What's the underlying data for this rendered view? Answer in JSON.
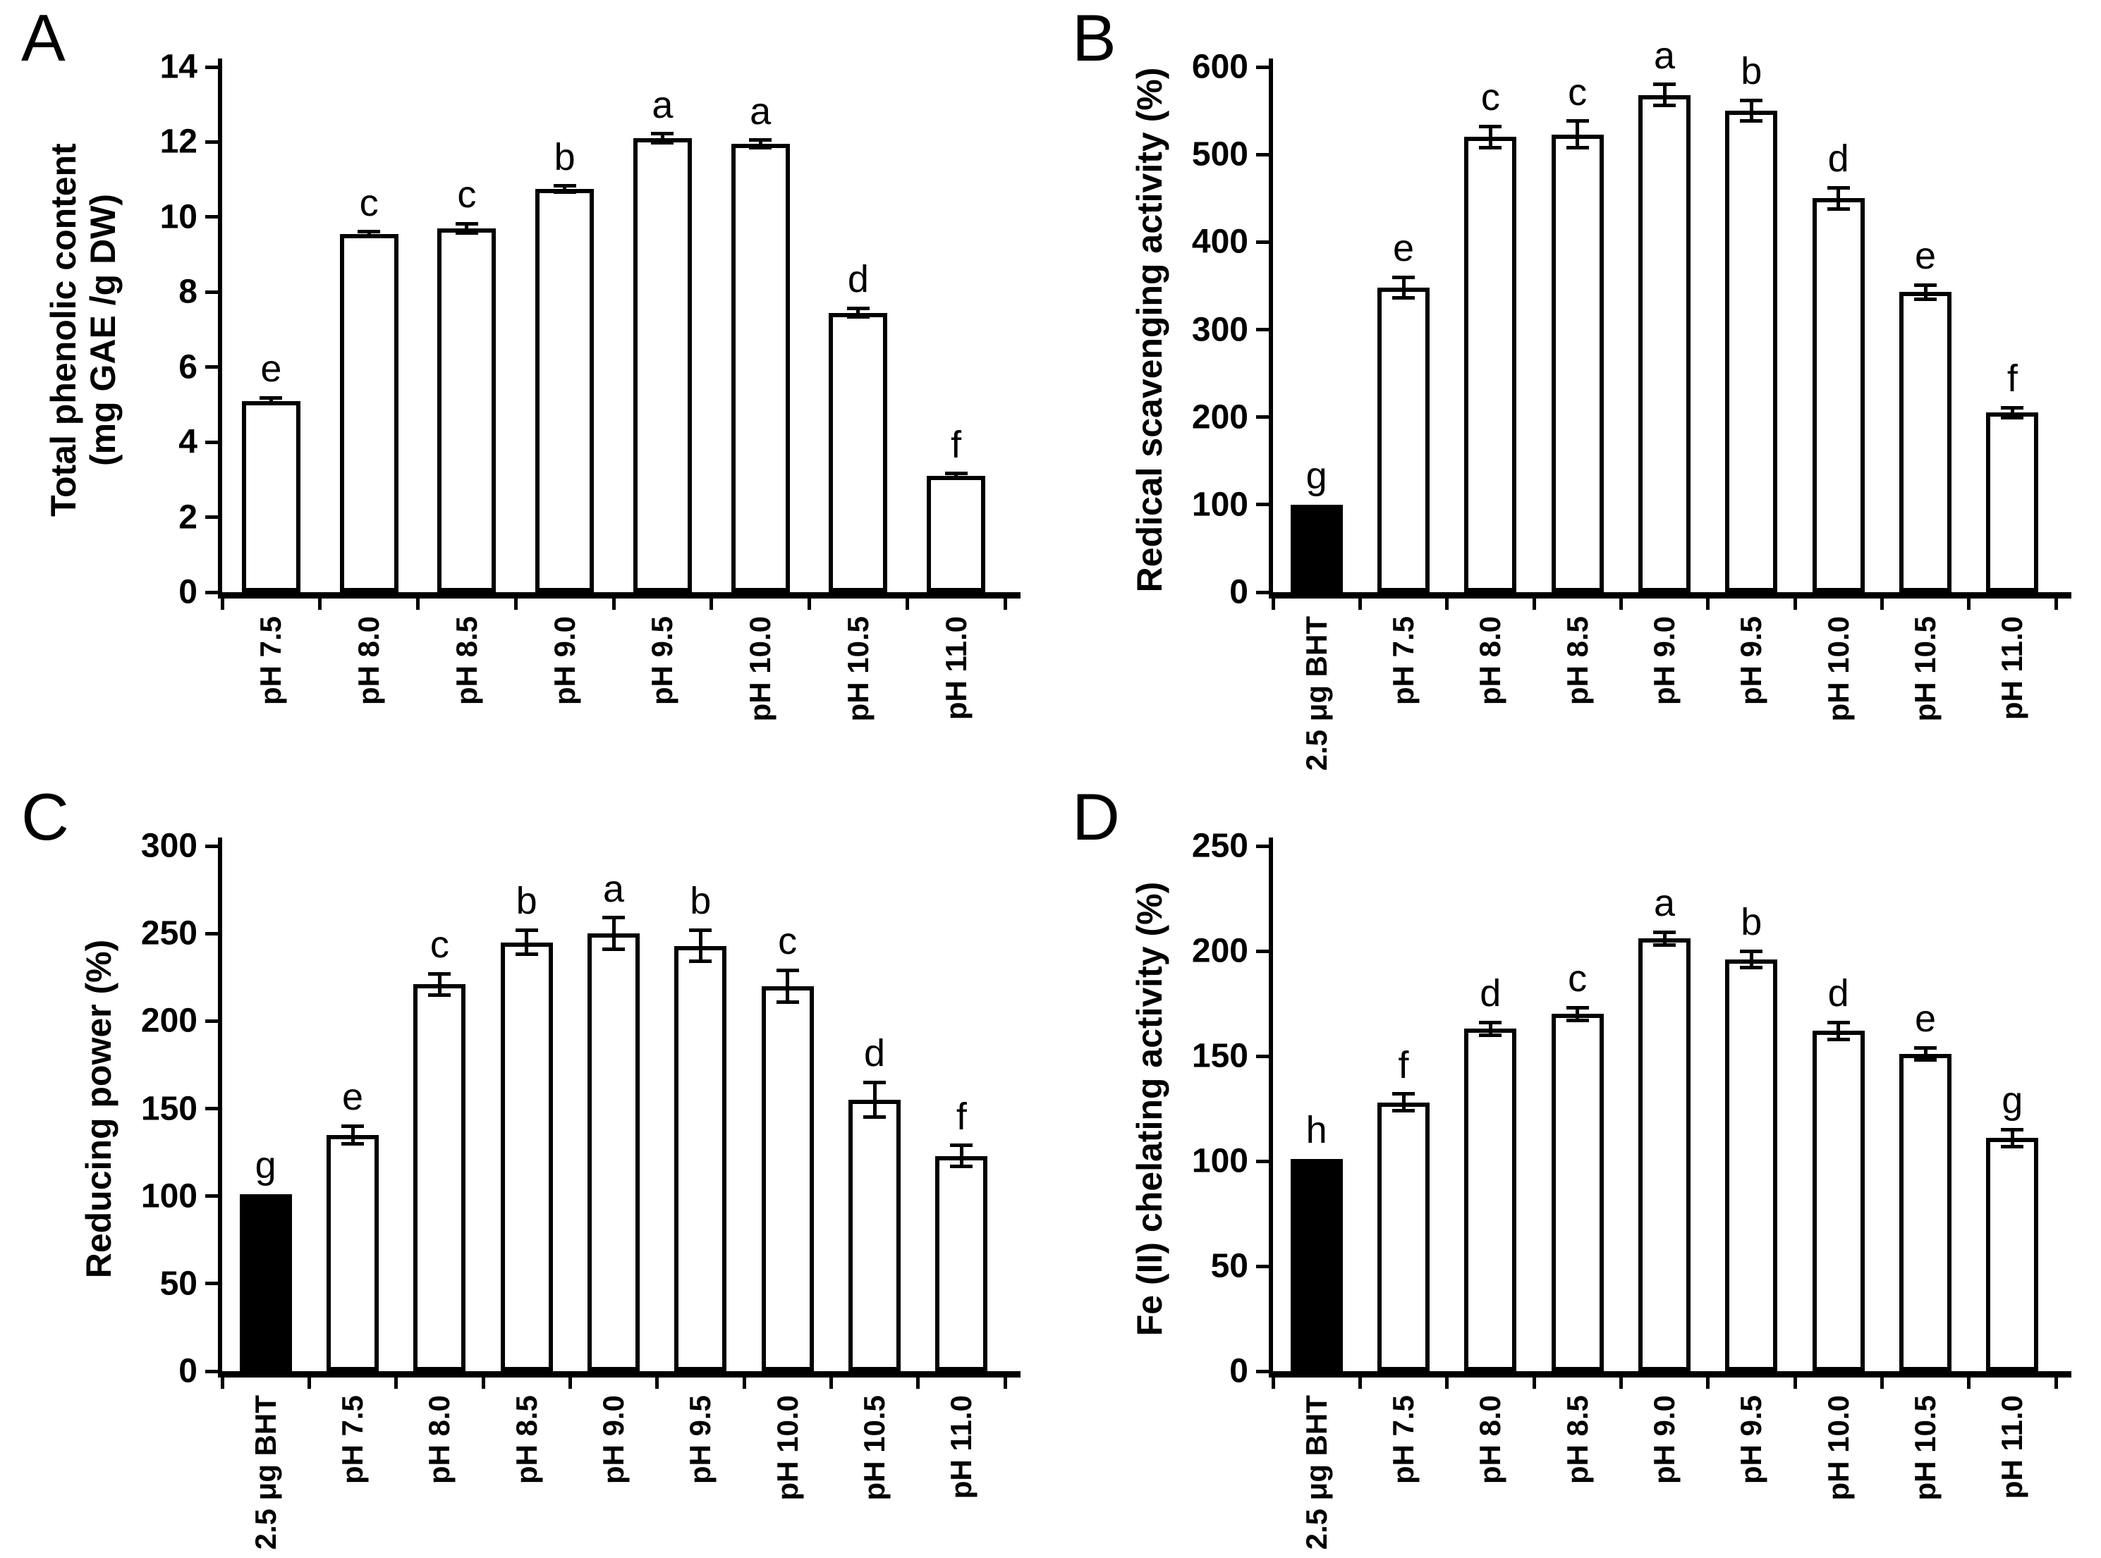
{
  "figure": {
    "background": "#ffffff",
    "axis_color": "#000000",
    "open_bar_fill": "#ffffff",
    "open_bar_outline": "#000000",
    "solid_bar_fill": "#000000",
    "grid": false,
    "legend": "none"
  },
  "chart_data": [
    {
      "panel_label": "A",
      "type": "bar",
      "ylabel_lines": [
        "Total phenolic content",
        "(mg GAE /g DW)"
      ],
      "ylim": [
        0,
        14
      ],
      "yticks": [
        0,
        2,
        4,
        6,
        8,
        10,
        12,
        14
      ],
      "categories": [
        "pH 7.5",
        "pH 8.0",
        "pH 8.5",
        "pH 9.0",
        "pH 9.5",
        "pH 10.0",
        "pH 10.5",
        "pH 11.0"
      ],
      "values": [
        5.1,
        9.55,
        9.7,
        10.75,
        12.1,
        11.95,
        7.45,
        3.1
      ],
      "errors": [
        0.08,
        0.06,
        0.12,
        0.08,
        0.12,
        0.1,
        0.12,
        0.06
      ],
      "letters": [
        "e",
        "c",
        "c",
        "b",
        "a",
        "a",
        "d",
        "f"
      ],
      "first_bar_solid": false
    },
    {
      "panel_label": "B",
      "type": "bar",
      "ylabel_lines": [
        "Redical scavenging activity (%)"
      ],
      "ylim": [
        0,
        600
      ],
      "yticks": [
        0,
        100,
        200,
        300,
        400,
        500,
        600
      ],
      "categories": [
        "2.5 μg BHT",
        "pH 7.5",
        "pH 8.0",
        "pH 8.5",
        "pH 9.0",
        "pH 9.5",
        "pH 10.0",
        "pH 10.5",
        "pH 11.0"
      ],
      "values": [
        100,
        348,
        520,
        523,
        568,
        550,
        450,
        343,
        205
      ],
      "errors": [
        0,
        12,
        12,
        15,
        12,
        12,
        12,
        8,
        6
      ],
      "letters": [
        "g",
        "e",
        "c",
        "c",
        "a",
        "b",
        "d",
        "e",
        "f"
      ],
      "first_bar_solid": true
    },
    {
      "panel_label": "C",
      "type": "bar",
      "ylabel_lines": [
        "Reducing power (%)"
      ],
      "ylim": [
        0,
        300
      ],
      "yticks": [
        0,
        50,
        100,
        150,
        200,
        250,
        300
      ],
      "categories": [
        "2.5 μg BHT",
        "pH 7.5",
        "pH 8.0",
        "pH 8.5",
        "pH 9.0",
        "pH 9.5",
        "pH 10.0",
        "pH 10.5",
        "pH 11.0"
      ],
      "values": [
        101,
        135,
        221,
        245,
        250,
        243,
        220,
        155,
        123
      ],
      "errors": [
        0,
        5,
        6,
        7,
        9,
        9,
        9,
        10,
        6
      ],
      "letters": [
        "g",
        "e",
        "c",
        "b",
        "a",
        "b",
        "c",
        "d",
        "f"
      ],
      "first_bar_solid": true
    },
    {
      "panel_label": "D",
      "type": "bar",
      "ylabel_lines": [
        "Fe (II) chelating activity (%)"
      ],
      "ylim": [
        0,
        250
      ],
      "yticks": [
        0,
        50,
        100,
        150,
        200,
        250
      ],
      "categories": [
        "2.5 μg BHT",
        "pH 7.5",
        "pH 8.0",
        "pH 8.5",
        "pH 9.0",
        "pH 9.5",
        "pH 10.0",
        "pH 10.5",
        "pH 11.0"
      ],
      "values": [
        101,
        128,
        163,
        170,
        206,
        196,
        162,
        151,
        111
      ],
      "errors": [
        0,
        4,
        3,
        3,
        3,
        4,
        4,
        3,
        4
      ],
      "letters": [
        "h",
        "f",
        "d",
        "c",
        "a",
        "b",
        "d",
        "e",
        "g"
      ],
      "first_bar_solid": true
    }
  ]
}
